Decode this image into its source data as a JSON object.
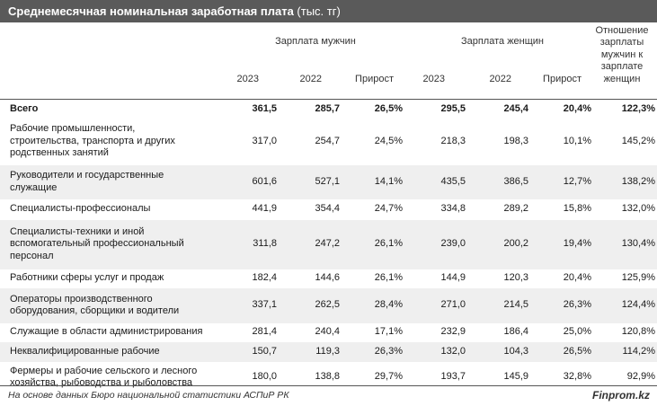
{
  "title": {
    "bold": "Среднемесячная номинальная заработная плата",
    "unit": " (тыс. тг)"
  },
  "header": {
    "men_group": "Зарплата мужчин",
    "women_group": "Зарплата женщин",
    "ratio": [
      "Отношение",
      "зарплаты",
      "мужчин к",
      "зарплате",
      "женщин"
    ],
    "sub": [
      "2023",
      "2022",
      "Прирост",
      "2023",
      "2022",
      "Прирост"
    ]
  },
  "rows": [
    {
      "category": [
        "Всего"
      ],
      "values": [
        "361,5",
        "285,7",
        "26,5%",
        "295,5",
        "245,4",
        "20,4%",
        "122,3%"
      ]
    },
    {
      "category": [
        "Рабочие промышленности,",
        "строительства, транспорта и других",
        "родственных занятий"
      ],
      "values": [
        "317,0",
        "254,7",
        "24,5%",
        "218,3",
        "198,3",
        "10,1%",
        "145,2%"
      ]
    },
    {
      "category": [
        "Руководители и государственные",
        "служащие"
      ],
      "values": [
        "601,6",
        "527,1",
        "14,1%",
        "435,5",
        "386,5",
        "12,7%",
        "138,2%"
      ]
    },
    {
      "category": [
        "Специалисты-профессионалы"
      ],
      "values": [
        "441,9",
        "354,4",
        "24,7%",
        "334,8",
        "289,2",
        "15,8%",
        "132,0%"
      ]
    },
    {
      "category": [
        "Специалисты-техники и иной",
        "вспомогательный профессиональный",
        "персонал"
      ],
      "values": [
        "311,8",
        "247,2",
        "26,1%",
        "239,0",
        "200,2",
        "19,4%",
        "130,4%"
      ]
    },
    {
      "category": [
        "Работники сферы услуг и продаж"
      ],
      "values": [
        "182,4",
        "144,6",
        "26,1%",
        "144,9",
        "120,3",
        "20,4%",
        "125,9%"
      ]
    },
    {
      "category": [
        "Операторы производственного",
        "оборудования, сборщики и водители"
      ],
      "values": [
        "337,1",
        "262,5",
        "28,4%",
        "271,0",
        "214,5",
        "26,3%",
        "124,4%"
      ]
    },
    {
      "category": [
        "Служащие в области администрирования"
      ],
      "values": [
        "281,4",
        "240,4",
        "17,1%",
        "232,9",
        "186,4",
        "25,0%",
        "120,8%"
      ]
    },
    {
      "category": [
        "Неквалифицированные рабочие"
      ],
      "values": [
        "150,7",
        "119,3",
        "26,3%",
        "132,0",
        "104,3",
        "26,5%",
        "114,2%"
      ]
    },
    {
      "category": [
        "Фермеры и рабочие сельского и лесного",
        "хозяйства, рыбоводства и рыболовства"
      ],
      "values": [
        "180,0",
        "138,8",
        "29,7%",
        "193,7",
        "145,9",
        "32,8%",
        "92,9%"
      ]
    }
  ],
  "footer": {
    "source": "На основе данных Бюро национальной статистики АСПиР РК",
    "brand": "Finprom.kz"
  },
  "colors": {
    "title_bg": "#5a5a5a",
    "row_alt": "#efefef"
  }
}
